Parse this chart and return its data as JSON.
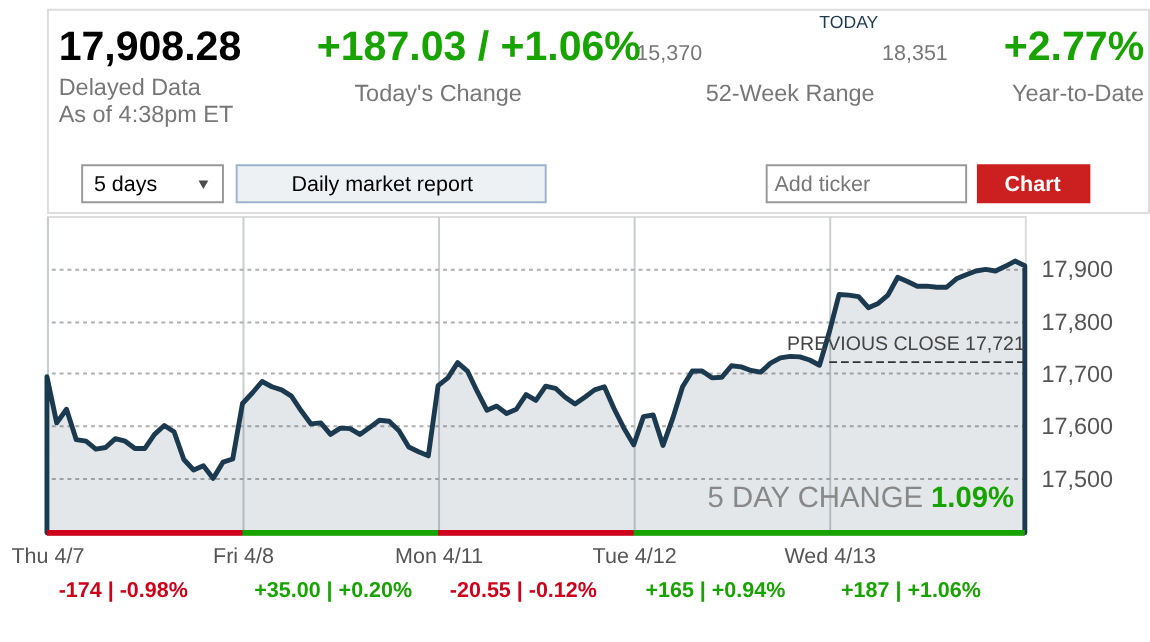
{
  "chart_data": [
    {
      "type": "other",
      "annotations": [
        "17,908.28",
        "Delayed Data",
        "As of 4:38pm ET",
        "+187.03 / +1.06%",
        "Today's Change",
        "15,370",
        "TODAY",
        "18,351",
        "52-Week Range",
        "+2.77%",
        "Year-to-Date",
        "5 days",
        "Daily market report",
        "Add ticker",
        "Chart"
      ]
    },
    {
      "type": "area",
      "color": "#1c3a4f",
      "categories": [
        "Thu 4/7",
        null,
        null,
        null,
        null,
        null,
        null,
        null,
        null,
        null,
        null,
        null,
        null,
        null,
        null,
        null,
        null,
        null,
        null,
        null,
        "Fri 4/8",
        null,
        null,
        null,
        null,
        null,
        null,
        null,
        null,
        null,
        null,
        null,
        null,
        null,
        null,
        null,
        null,
        null,
        null,
        null,
        "Mon 4/11",
        null,
        null,
        null,
        null,
        null,
        null,
        null,
        null,
        null,
        null,
        null,
        null,
        null,
        null,
        null,
        null,
        null,
        null,
        null,
        "Tue 4/12",
        null,
        null,
        null,
        null,
        null,
        null,
        null,
        null,
        null,
        null,
        null,
        null,
        null,
        null,
        null,
        null,
        null,
        null,
        null,
        "Wed 4/13",
        null,
        null,
        null,
        null,
        null,
        null,
        null,
        null,
        null,
        null,
        null,
        null,
        null,
        null,
        null,
        null,
        null,
        null,
        null,
        null
      ],
      "values": [
        17693,
        17605,
        17631,
        17573,
        17570,
        17555,
        17558,
        17575,
        17570,
        17556,
        17556,
        17583,
        17600,
        17588,
        17535,
        17515,
        17523,
        17499,
        17530,
        17536,
        17642,
        17662,
        17684,
        17674,
        17668,
        17656,
        17628,
        17603,
        17605,
        17583,
        17595,
        17594,
        17583,
        17596,
        17610,
        17608,
        17590,
        17559,
        17550,
        17542,
        17676,
        17691,
        17720,
        17704,
        17665,
        17629,
        17637,
        17623,
        17631,
        17659,
        17648,
        17675,
        17671,
        17654,
        17641,
        17654,
        17668,
        17674,
        17632,
        17595,
        17563,
        17617,
        17620,
        17562,
        17614,
        17674,
        17704,
        17704,
        17691,
        17692,
        17714,
        17712,
        17705,
        17702,
        17719,
        17729,
        17732,
        17731,
        17725,
        17715,
        17778,
        17850,
        17849,
        17846,
        17825,
        17833,
        17849,
        17883,
        17875,
        17866,
        17866,
        17864,
        17864,
        17880,
        17888,
        17895,
        17898,
        17895,
        17904,
        17914,
        17905
      ],
      "ylim": [
        17395,
        18000
      ],
      "yticks": [
        {
          "value": 17500,
          "label": "17,500"
        },
        {
          "value": 17600,
          "label": "17,600"
        },
        {
          "value": 17700,
          "label": "17,700"
        },
        {
          "value": 17800,
          "label": "17,800"
        },
        {
          "value": 17900,
          "label": "17,900"
        }
      ],
      "grid": true,
      "marker": "none",
      "ref_lines": [
        {
          "axis": "y",
          "value": 17721,
          "label": "PREVIOUS CLOSE 17,721",
          "line_style": "dashed",
          "color": "#333333"
        }
      ],
      "annotations": [
        "-174 | -0.98%",
        "+35.00 | +0.20%",
        "-20.55 | -0.12%",
        "+165 | +0.94%",
        "+187 | +1.06%",
        "5 DAY CHANGE",
        "1.09%"
      ]
    }
  ]
}
